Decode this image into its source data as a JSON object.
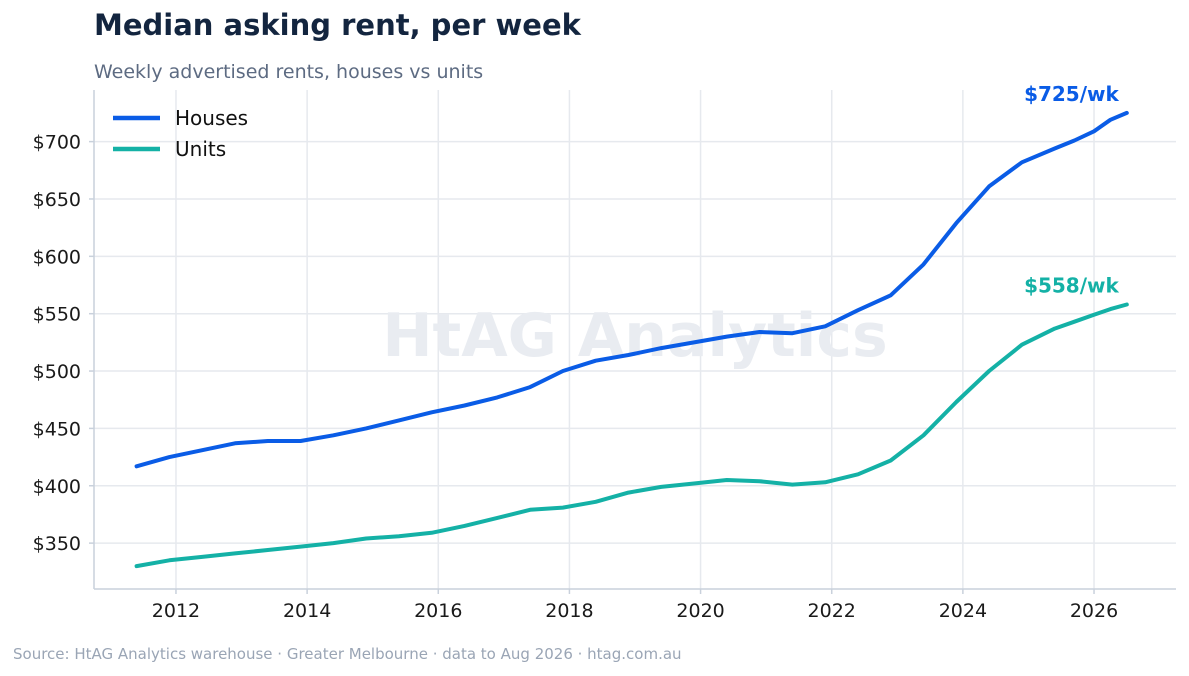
{
  "title": "Median asking rent, per week",
  "subtitle": "Weekly advertised rents, houses vs units",
  "watermark": "HtAG Analytics",
  "source": "Source: HtAG Analytics warehouse  ·  Greater Melbourne  ·  data to Aug 2026  ·  htag.com.au",
  "chart_data": {
    "type": "line",
    "title": "Median asking rent, per week",
    "subtitle": "Weekly advertised rents, houses vs units",
    "xlabel": "",
    "ylabel": "",
    "xlim": [
      2010.75,
      2027.25
    ],
    "ylim": [
      310,
      745
    ],
    "x_ticks": [
      2012,
      2014,
      2016,
      2018,
      2020,
      2022,
      2024,
      2026
    ],
    "y_ticks": [
      350,
      400,
      450,
      500,
      550,
      600,
      650,
      700
    ],
    "y_tick_labels": [
      "$350",
      "$400",
      "$450",
      "$500",
      "$550",
      "$600",
      "$650",
      "$700"
    ],
    "grid": true,
    "legend_position": "top-left",
    "series": [
      {
        "name": "Houses",
        "color": "#0a5ce6",
        "end_label": "$725/wk",
        "points": [
          [
            2011.4,
            417
          ],
          [
            2011.9,
            425
          ],
          [
            2012.4,
            431
          ],
          [
            2012.9,
            437
          ],
          [
            2013.4,
            439
          ],
          [
            2013.9,
            439
          ],
          [
            2014.4,
            444
          ],
          [
            2014.9,
            450
          ],
          [
            2015.4,
            457
          ],
          [
            2015.9,
            464
          ],
          [
            2016.4,
            470
          ],
          [
            2016.9,
            477
          ],
          [
            2017.4,
            486
          ],
          [
            2017.9,
            500
          ],
          [
            2018.4,
            509
          ],
          [
            2018.9,
            514
          ],
          [
            2019.4,
            520
          ],
          [
            2019.9,
            525
          ],
          [
            2020.4,
            530
          ],
          [
            2020.9,
            534
          ],
          [
            2021.4,
            533
          ],
          [
            2021.9,
            539
          ],
          [
            2022.4,
            553
          ],
          [
            2022.9,
            566
          ],
          [
            2023.4,
            593
          ],
          [
            2023.9,
            629
          ],
          [
            2024.4,
            661
          ],
          [
            2024.9,
            682
          ],
          [
            2025.4,
            694
          ],
          [
            2025.7,
            701
          ],
          [
            2026.0,
            709
          ],
          [
            2026.25,
            719
          ],
          [
            2026.5,
            725
          ]
        ]
      },
      {
        "name": "Units",
        "color": "#14b1a6",
        "end_label": "$558/wk",
        "points": [
          [
            2011.4,
            330
          ],
          [
            2011.9,
            335
          ],
          [
            2012.4,
            338
          ],
          [
            2012.9,
            341
          ],
          [
            2013.4,
            344
          ],
          [
            2013.9,
            347
          ],
          [
            2014.4,
            350
          ],
          [
            2014.9,
            354
          ],
          [
            2015.4,
            356
          ],
          [
            2015.9,
            359
          ],
          [
            2016.4,
            365
          ],
          [
            2016.9,
            372
          ],
          [
            2017.4,
            379
          ],
          [
            2017.9,
            381
          ],
          [
            2018.4,
            386
          ],
          [
            2018.9,
            394
          ],
          [
            2019.4,
            399
          ],
          [
            2019.9,
            402
          ],
          [
            2020.4,
            405
          ],
          [
            2020.9,
            404
          ],
          [
            2021.4,
            401
          ],
          [
            2021.9,
            403
          ],
          [
            2022.4,
            410
          ],
          [
            2022.9,
            422
          ],
          [
            2023.4,
            444
          ],
          [
            2023.9,
            473
          ],
          [
            2024.4,
            500
          ],
          [
            2024.9,
            523
          ],
          [
            2025.4,
            537
          ],
          [
            2025.7,
            543
          ],
          [
            2026.0,
            549
          ],
          [
            2026.25,
            554
          ],
          [
            2026.5,
            558
          ]
        ]
      }
    ]
  }
}
